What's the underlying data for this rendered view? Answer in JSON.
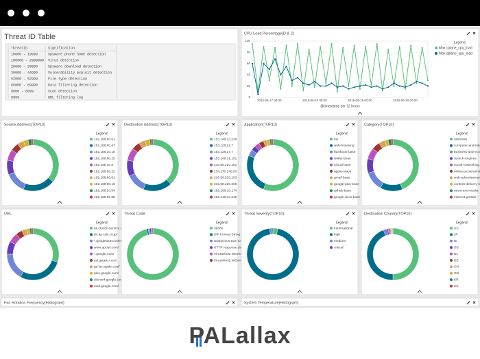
{
  "threat_table": {
    "title": "Threat ID Table",
    "header": [
      "ThreatID",
      "Signification"
    ],
    "rows": [
      [
        "10000 - 19999",
        "Spyware phone home detection"
      ],
      [
        "100000 - 2999999",
        "Virus detection"
      ],
      [
        "20000 - 29999",
        "Spyware download detection"
      ],
      [
        "30000 - 44999",
        "Vulnerability exploit detection"
      ],
      [
        "52000 - 52999",
        "File type detection"
      ],
      [
        "60000 - 69999",
        "Data filtering detection"
      ],
      [
        "8000 - 8099",
        "Scan detection"
      ],
      [
        "9999",
        "URL filtering log"
      ]
    ]
  },
  "chart_data": [
    {
      "type": "line",
      "title": "CPU Load Percentage(D & C)",
      "legend_title": "Legend",
      "xlabel": "@timestamp per 12 hours",
      "ylim": [
        0,
        100
      ],
      "yticks": [
        0,
        20,
        40,
        60,
        80,
        100
      ],
      "categories": [
        null,
        null,
        null,
        "2015-06-17 00:00",
        null,
        null,
        null,
        null,
        null,
        null,
        null,
        "2015-06-18 00:00",
        null,
        null,
        null,
        null,
        null,
        null,
        null,
        "2015-06-19 00:00",
        null,
        null,
        null,
        null,
        null,
        null,
        null,
        "2015-06-20 00:00",
        null,
        null,
        null,
        null
      ],
      "series": [
        {
          "name": "Max cplane_cpu_load",
          "color": "#57c17b",
          "values": [
            95,
            10,
            90,
            30,
            88,
            15,
            92,
            20,
            95,
            12,
            85,
            18,
            90,
            25,
            95,
            10,
            88,
            20,
            92,
            15,
            90,
            22,
            95,
            12,
            85,
            20,
            90,
            15,
            92,
            25,
            88,
            30
          ]
        },
        {
          "name": "Max dplane_cpu_load",
          "color": "#006e8a",
          "values": [
            60,
            5,
            60,
            50,
            68,
            40,
            55,
            30,
            35,
            25,
            22,
            28,
            20,
            20,
            25,
            18,
            20,
            15,
            18,
            20,
            22,
            18,
            20,
            15,
            18,
            25,
            20,
            18,
            22,
            28,
            25,
            20
          ]
        }
      ]
    },
    {
      "type": "pie",
      "title": "Source Address(TOP10)",
      "legend_title": "Legend",
      "categories": [
        "192.168.80.61",
        "192.168.80.47",
        "192.168.10.18",
        "192.168.80.25",
        "192.168.10.8",
        "192.168.80.22",
        "192.168.80.81",
        "192.168.80.19",
        "192.168.10.54",
        "192.168.80.98"
      ],
      "values": [
        36,
        20,
        13,
        9,
        7,
        5,
        4,
        3,
        2,
        1
      ],
      "colors": [
        "#57c17b",
        "#006e8a",
        "#6f87d8",
        "#663db8",
        "#bc52bc",
        "#9e3533",
        "#daa05d",
        "#c8b82a",
        "#2a7f62",
        "#cc3344"
      ]
    },
    {
      "type": "pie",
      "title": "Destination Address(TOP10)",
      "legend_title": "Legend",
      "categories": [
        "153.149.13.239",
        "153.128.21.7",
        "153.128.27.7",
        "153.149.31.161",
        "216.58.220.161",
        "134.170.148.50",
        "216.58.220.193",
        "216.58.220.206",
        "192.168.10.174",
        "153.149.34.216"
      ],
      "values": [
        38,
        18,
        12,
        10,
        8,
        5,
        4,
        3,
        1,
        1
      ],
      "colors": [
        "#57c17b",
        "#006e8a",
        "#6f87d8",
        "#663db8",
        "#bc52bc",
        "#9e3533",
        "#daa05d",
        "#c8b82a",
        "#2a7f62",
        "#cc3344"
      ]
    },
    {
      "type": "pie",
      "title": "Application(TOP10)",
      "legend_title": "Legend",
      "categories": [
        "ssl",
        "web-browsing",
        "facebook-base",
        "twitter-base",
        "icloud-base",
        "apple-maps",
        "gmail-base",
        "google-plus-base",
        "github-base",
        "google-docs-base"
      ],
      "values": [
        56,
        25,
        4,
        3,
        3,
        3,
        2,
        2,
        1,
        1
      ],
      "colors": [
        "#57c17b",
        "#006e8a",
        "#6f87d8",
        "#663db8",
        "#bc52bc",
        "#9e3533",
        "#daa05d",
        "#c8b82a",
        "#2a7f62",
        "#cc3344"
      ]
    },
    {
      "type": "pie",
      "title": "Category(TOP10)",
      "legend_title": "Legend",
      "categories": [
        "unknown",
        "computer-and-internet",
        "business-and-economy",
        "search-engines",
        "social-networking",
        "online-personal-storage",
        "web-advertisements",
        "content-delivery-netw...",
        "news-and-media",
        "internet-portals"
      ],
      "values": [
        44,
        14,
        12,
        9,
        7,
        5,
        4,
        2,
        2,
        1
      ],
      "colors": [
        "#57c17b",
        "#006e8a",
        "#6f87d8",
        "#663db8",
        "#bc52bc",
        "#9e3533",
        "#daa05d",
        "#c8b82a",
        "#2a7f62",
        "#cc3344"
      ]
    },
    {
      "type": "pie",
      "title": "URL",
      "legend_title": "Legend",
      "categories": [
        "ati.cloudn-service.com/",
        "dn.ap-cdn.co.jp/",
        "*.googleusercontent.c...",
        "www.apctel.com/",
        "*.google.com/",
        "ssl.gstatic.com/",
        "gs-loc.apple.com/",
        "plus.google.com/",
        "clients4.google.com/",
        "mail.google.com/"
      ],
      "values": [
        30,
        28,
        17,
        8,
        6,
        4,
        3,
        2,
        1,
        1
      ],
      "colors": [
        "#57c17b",
        "#006e8a",
        "#6f87d8",
        "#663db8",
        "#bc52bc",
        "#9e3533",
        "#daa05d",
        "#c8b82a",
        "#2a7f62",
        "#cc3344"
      ]
    },
    {
      "type": "pie",
      "title": "Threat Code",
      "legend_title": "Legend",
      "categories": [
        "38665",
        "SIP Format String in R...",
        "Suspicious Dan Con...",
        "HTTP response data ...",
        "VirusWin32 WGeneri...",
        "VirusWin32 WGeneri..."
      ],
      "values": [
        96,
        1,
        1,
        1,
        0.5,
        0.5
      ],
      "colors": [
        "#57c17b",
        "#006e8a",
        "#6f87d8",
        "#663db8",
        "#bc52bc",
        "#9e3533"
      ]
    },
    {
      "type": "pie",
      "title": "Threat Severity(TOP10)",
      "legend_title": "Legend",
      "categories": [
        "informational",
        "high",
        "medium",
        "critical"
      ],
      "values": [
        3,
        95,
        1.5,
        0.5
      ],
      "colors": [
        "#57c17b",
        "#006e8a",
        "#6f87d8",
        "#663db8"
      ]
    },
    {
      "type": "pie",
      "title": "Destination Country(TOP10)",
      "legend_title": "Legend",
      "categories": [
        "US",
        "JP",
        "IE",
        "SG",
        "NL",
        "DE",
        "CN",
        "GB",
        "KR",
        "HK"
      ],
      "values": [
        50,
        44,
        2,
        1,
        1,
        0.5,
        0.5,
        0.5,
        0.3,
        0.2
      ],
      "colors": [
        "#57c17b",
        "#006e8a",
        "#6f87d8",
        "#663db8",
        "#bc52bc",
        "#9e3533",
        "#daa05d",
        "#c8b82a",
        "#2a7f62",
        "#cc3344"
      ]
    }
  ],
  "empty_panels": [
    "Fan Rotation Frequency(Histogram)",
    "System Temperature(Histogram)"
  ],
  "logo": "PALallax"
}
